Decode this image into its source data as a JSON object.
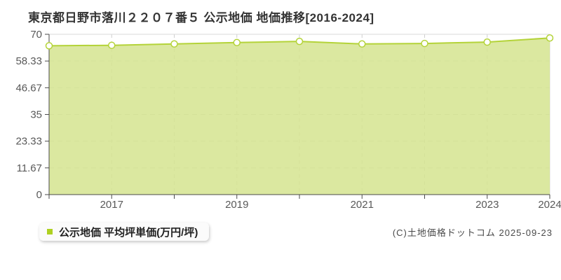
{
  "header": {
    "title": "東京都日野市落川２２０７番５ 公示地価 地価推移[2016-2024]"
  },
  "legend": {
    "label": "公示地価 平均坪単価(万円/坪)",
    "marker_color": "#aed020"
  },
  "footer": {
    "copyright": "(C)土地価格ドットコム 2025-09-23"
  },
  "chart_data": {
    "type": "area",
    "title": "東京都日野市落川２２０７番５ 公示地価 地価推移[2016-2024]",
    "series_name": "公示地価 平均坪単価(万円/坪)",
    "x": [
      2016,
      2017,
      2018,
      2019,
      2020,
      2021,
      2022,
      2023,
      2024
    ],
    "values": [
      65.0,
      65.2,
      65.8,
      66.4,
      66.9,
      65.8,
      66.0,
      66.6,
      68.4
    ],
    "xlabel": "",
    "ylabel": "平均坪単価(万円/坪)",
    "ylim": [
      0,
      70
    ],
    "yticks": [
      0,
      11.67,
      23.33,
      35,
      46.67,
      58.33,
      70
    ],
    "ytick_labels": [
      "0",
      "11.67",
      "23.33",
      "35",
      "46.67",
      "58.33",
      "70"
    ],
    "xtick_labels": [
      {
        "index": 1,
        "label": "2017"
      },
      {
        "index": 3,
        "label": "2019"
      },
      {
        "index": 5,
        "label": "2021"
      },
      {
        "index": 7,
        "label": "2023"
      },
      {
        "index": 8,
        "label": "2024"
      }
    ],
    "grid": true,
    "legend_position": "bottom-left",
    "colors": {
      "fill": "#d5e48f",
      "line": "#b4d339",
      "marker_fill": "#ffffff",
      "axis": "#4a4a4a",
      "grid": "#cfcfcf",
      "border": "#d8d8d8",
      "text": "#595959"
    }
  }
}
